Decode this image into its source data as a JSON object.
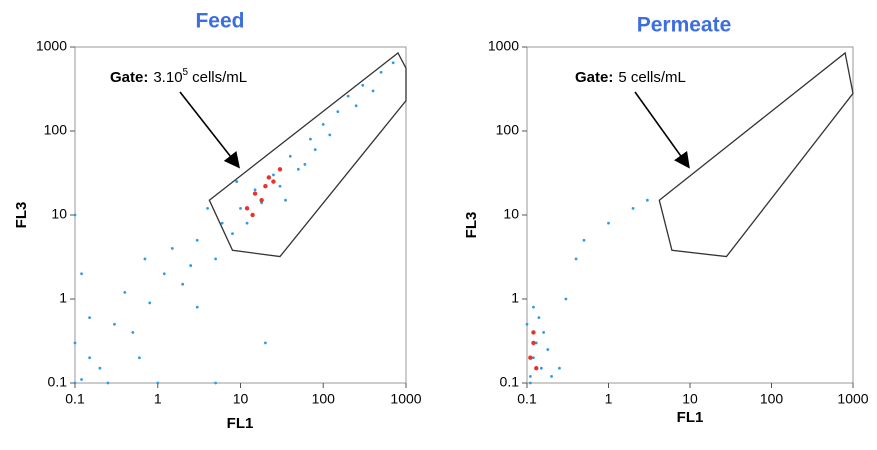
{
  "chart_data": [
    {
      "type": "scatter",
      "title": "Feed",
      "x_label": "FL1",
      "y_label": "FL3",
      "log_x": true,
      "log_y": true,
      "xlim": [
        0.1,
        1000
      ],
      "ylim": [
        0.1,
        1000
      ],
      "xticks": [
        0.1,
        1,
        10,
        100,
        1000
      ],
      "yticks": [
        0.1,
        1,
        10,
        100,
        1000
      ],
      "annotation": {
        "bold": "Gate:",
        "text": "3.10",
        "sup": "5",
        "rest": "cells/mL"
      },
      "gate": [
        [
          4.2,
          15
        ],
        [
          800,
          850
        ],
        [
          1000,
          560
        ],
        [
          1000,
          230
        ],
        [
          30,
          3.2
        ],
        [
          8,
          3.8
        ]
      ],
      "gate_color": "#333333",
      "points": {
        "color": "#2f9be6",
        "x": [
          0.12,
          0.15,
          0.1,
          0.2,
          0.3,
          0.5,
          0.4,
          0.8,
          1.2,
          2,
          3,
          1.5,
          5,
          6,
          8,
          10,
          12,
          15,
          18,
          25,
          30,
          40,
          50,
          70,
          100,
          150,
          200,
          300,
          500,
          700,
          0.1,
          0.1,
          0.25,
          1,
          5,
          0.7,
          3,
          20,
          60,
          120,
          400,
          9,
          35,
          4,
          0.15,
          0.12,
          2.5,
          0.6,
          80,
          250
        ],
        "y": [
          0.11,
          0.2,
          0.3,
          0.15,
          0.5,
          0.4,
          1.2,
          0.9,
          2,
          1.5,
          5,
          4,
          3,
          8,
          6,
          12,
          8,
          20,
          14,
          30,
          22,
          50,
          35,
          80,
          120,
          170,
          260,
          350,
          500,
          650,
          10,
          0.1,
          0.1,
          0.1,
          0.1,
          3,
          0.8,
          0.3,
          40,
          90,
          300,
          25,
          15,
          12,
          0.6,
          2,
          2.5,
          0.2,
          60,
          200
        ]
      },
      "core": {
        "color": "#e8322a",
        "x": [
          12,
          15,
          20,
          18,
          25,
          14,
          22,
          30
        ],
        "y": [
          12,
          18,
          22,
          15,
          25,
          10,
          28,
          35
        ]
      }
    },
    {
      "type": "scatter",
      "title": "Permeate",
      "x_label": "FL1",
      "y_label": "FL3",
      "log_x": true,
      "log_y": true,
      "xlim": [
        0.1,
        1000
      ],
      "ylim": [
        0.1,
        1000
      ],
      "xticks": [
        0.1,
        1,
        10,
        100,
        1000
      ],
      "yticks": [
        0.1,
        1,
        10,
        100,
        1000
      ],
      "annotation": {
        "bold": "Gate:",
        "text": "5 cells/mL"
      },
      "gate": [
        [
          4.2,
          15
        ],
        [
          800,
          850
        ],
        [
          1000,
          280
        ],
        [
          28,
          3.2
        ],
        [
          6,
          3.8
        ]
      ],
      "gate_color": "#333333",
      "points": {
        "color": "#2f9be6",
        "x": [
          0.11,
          0.12,
          0.13,
          0.15,
          0.1,
          0.14,
          0.18,
          0.2,
          0.12,
          0.16,
          0.3,
          0.5,
          1,
          2,
          0.25,
          0.11,
          3,
          0.4
        ],
        "y": [
          0.12,
          0.2,
          0.3,
          0.15,
          0.5,
          0.6,
          0.25,
          0.12,
          0.8,
          0.4,
          1,
          5,
          8,
          12,
          0.15,
          0.1,
          15,
          3
        ]
      },
      "core": {
        "color": "#e8322a",
        "x": [
          0.11,
          0.12,
          0.13,
          0.12
        ],
        "y": [
          0.2,
          0.3,
          0.15,
          0.4
        ]
      }
    }
  ]
}
